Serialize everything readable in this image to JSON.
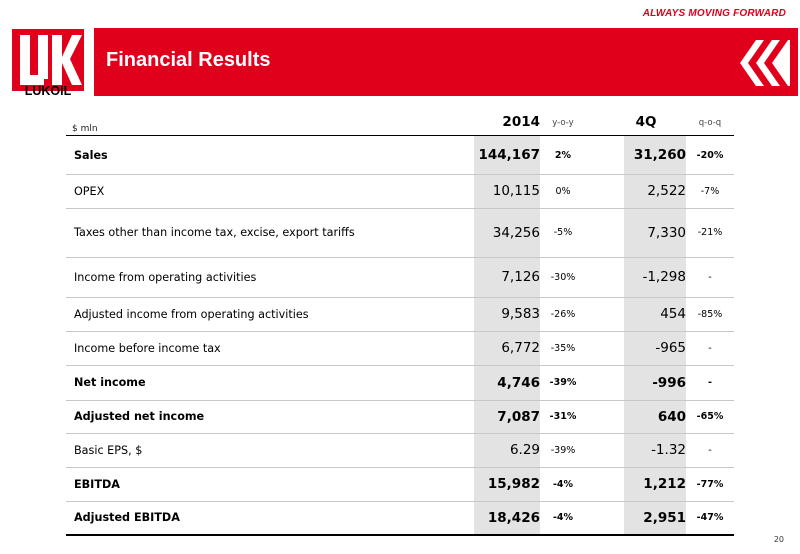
{
  "header": {
    "tagline": "ALWAYS MOVING FORWARD",
    "title": "Financial Results",
    "logo_text": "LUKOIL",
    "brand_color": "#e0001b"
  },
  "table": {
    "unit": "$ mln",
    "columns": {
      "y2014": "2014",
      "yoy": "y-o-y",
      "q4": "4Q",
      "qoq": "q-o-q"
    },
    "rows": [
      {
        "label": "Sales",
        "y2014": "144,167",
        "yoy": "2%",
        "q4": "31,260",
        "qoq": "-20%",
        "bold": true
      },
      {
        "label": "OPEX",
        "y2014": "10,115",
        "yoy": "0%",
        "q4": "2,522",
        "qoq": "-7%",
        "bold": false
      },
      {
        "label": "Taxes other than income tax, excise, export tariffs",
        "y2014": "34,256",
        "yoy": "-5%",
        "q4": "7,330",
        "qoq": "-21%",
        "bold": false
      },
      {
        "label": "Income from operating activities",
        "y2014": "7,126",
        "yoy": "-30%",
        "q4": "-1,298",
        "qoq": "-",
        "bold": false
      },
      {
        "label": "Adjusted income from operating activities",
        "y2014": "9,583",
        "yoy": "-26%",
        "q4": "454",
        "qoq": "-85%",
        "bold": false
      },
      {
        "label": "Income before income tax",
        "y2014": "6,772",
        "yoy": "-35%",
        "q4": "-965",
        "qoq": "-",
        "bold": false
      },
      {
        "label": "Net income",
        "y2014": "4,746",
        "yoy": "-39%",
        "q4": "-996",
        "qoq": "-",
        "bold": true
      },
      {
        "label": "Adjusted net income",
        "y2014": "7,087",
        "yoy": "-31%",
        "q4": "640",
        "qoq": "-65%",
        "bold": true
      },
      {
        "label": "Basic EPS, $",
        "y2014": "6.29",
        "yoy": "-39%",
        "q4": "-1.32",
        "qoq": "-",
        "bold": false
      },
      {
        "label": "EBITDA",
        "y2014": "15,982",
        "yoy": "-4%",
        "q4": "1,212",
        "qoq": "-77%",
        "bold": true
      },
      {
        "label": "Adjusted EBITDA",
        "y2014": "18,426",
        "yoy": "-4%",
        "q4": "2,951",
        "qoq": "-47%",
        "bold": true
      }
    ]
  },
  "footer": {
    "page_number": "20"
  }
}
